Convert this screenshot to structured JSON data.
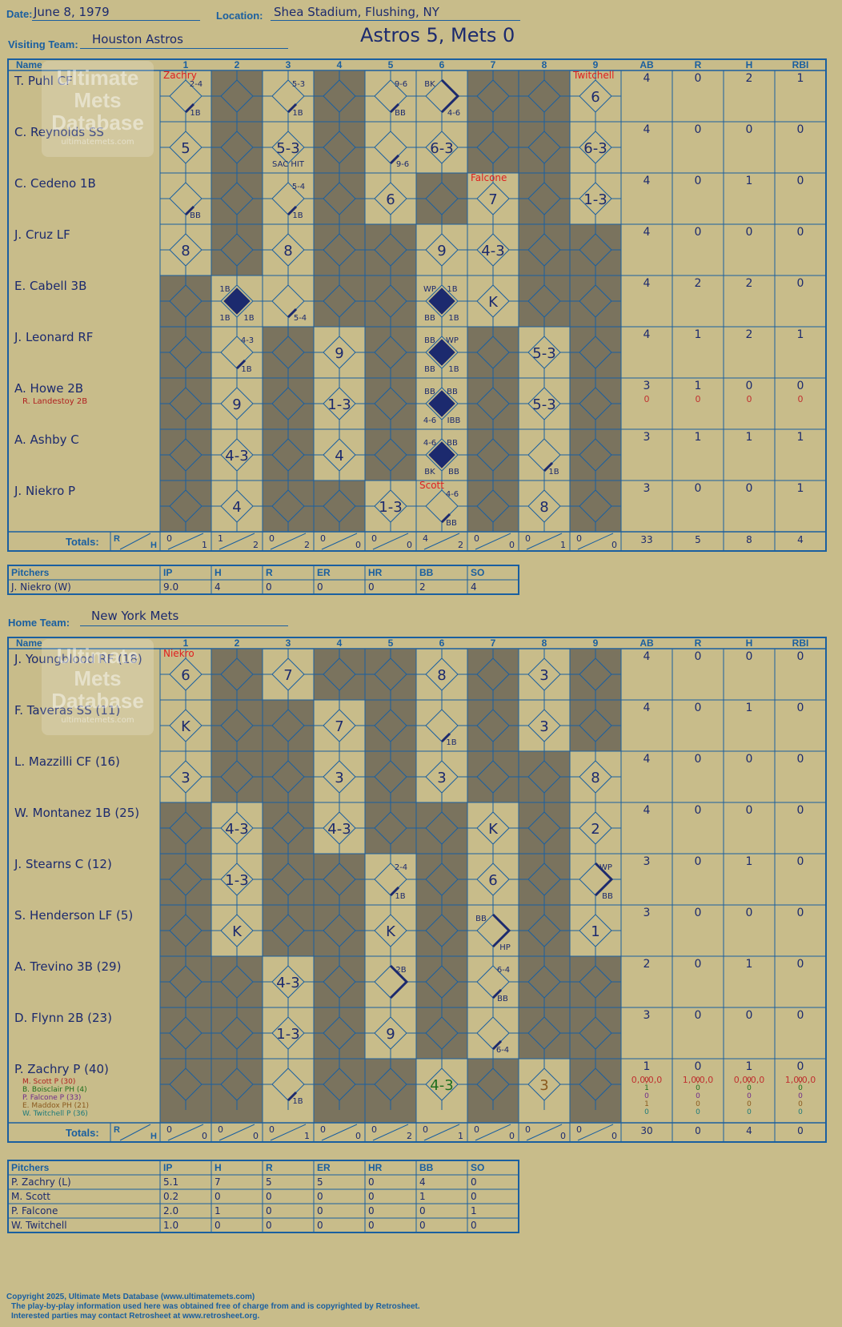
{
  "header": {
    "date_label": "Date:",
    "date": "June 8, 1979",
    "location_label": "Location:",
    "location": "Shea Stadium, Flushing, NY",
    "visiting_label": "Visiting Team:",
    "visiting_team": "Houston Astros",
    "result": "Astros 5, Mets 0",
    "home_label": "Home Team:",
    "home_team": "New York Mets"
  },
  "colors": {
    "card": "#c8bc8a",
    "shade": "#7a735e",
    "line": "#1a5fa0",
    "ink": "#1c2a6e",
    "red": "#e02020"
  },
  "columns": {
    "name": "Name",
    "innings": [
      "1",
      "2",
      "3",
      "4",
      "5",
      "6",
      "7",
      "8",
      "9"
    ],
    "stats": [
      "AB",
      "R",
      "H",
      "RBI"
    ],
    "totals": "Totals:",
    "r": "R",
    "h": "H"
  },
  "watermark": {
    "line1": "Ultimate",
    "line2": "Mets",
    "line3": "Database",
    "url": "ultimatemets.com"
  },
  "visitors": {
    "batters": [
      {
        "name": "T. Puhl CF",
        "stats": [
          "4",
          "0",
          "2",
          "1"
        ],
        "shade": [
          0,
          1,
          0,
          1,
          0,
          0,
          1,
          1,
          0
        ],
        "cells": [
          {
            "in": 1,
            "hit": 1,
            "code": "1B",
            "tr": "2-4"
          },
          {
            "in": 3,
            "hit": 1,
            "code": "1B",
            "tr": "5-3"
          },
          {
            "in": 5,
            "hit": 1,
            "code": "BB",
            "tr": "9-6"
          },
          {
            "in": 6,
            "hit": 2,
            "tl": "BK",
            "br": "4-6"
          },
          {
            "in": 9,
            "center": "6"
          }
        ]
      },
      {
        "name": "C. Reynolds SS",
        "stats": [
          "4",
          "0",
          "0",
          "0"
        ],
        "shade": [
          0,
          1,
          0,
          1,
          0,
          0,
          1,
          1,
          0
        ],
        "cells": [
          {
            "in": 1,
            "center": "5"
          },
          {
            "in": 3,
            "center": "5-3",
            "sub": "SAC HIT"
          },
          {
            "in": 5,
            "hit": 1,
            "br": "9-6"
          },
          {
            "in": 6,
            "center": "6-3"
          },
          {
            "in": 9,
            "center": "6-3"
          }
        ]
      },
      {
        "name": "C. Cedeno 1B",
        "stats": [
          "4",
          "0",
          "1",
          "0"
        ],
        "shade": [
          0,
          1,
          0,
          1,
          0,
          1,
          0,
          1,
          0
        ],
        "cells": [
          {
            "in": 1,
            "hit": 1,
            "code": "BB"
          },
          {
            "in": 3,
            "hit": 1,
            "code": "1B",
            "tr": "5-4"
          },
          {
            "in": 5,
            "center": "6"
          },
          {
            "in": 7,
            "center": "7"
          },
          {
            "in": 9,
            "center": "1-3"
          }
        ]
      },
      {
        "name": "J. Cruz LF",
        "stats": [
          "4",
          "0",
          "0",
          "0"
        ],
        "shade": [
          0,
          1,
          0,
          1,
          1,
          0,
          0,
          1,
          1
        ],
        "cells": [
          {
            "in": 1,
            "center": "8"
          },
          {
            "in": 3,
            "center": "8"
          },
          {
            "in": 6,
            "center": "9"
          },
          {
            "in": 7,
            "center": "4-3"
          }
        ]
      },
      {
        "name": "E. Cabell 3B",
        "stats": [
          "4",
          "2",
          "2",
          "0"
        ],
        "shade": [
          1,
          0,
          0,
          1,
          1,
          0,
          0,
          1,
          1
        ],
        "cells": [
          {
            "in": 2,
            "run": 1,
            "tl": "1B",
            "bl": "1B",
            "br": "1B"
          },
          {
            "in": 3,
            "hit": 1,
            "br": "5-4"
          },
          {
            "in": 6,
            "run": 1,
            "tl": "WP",
            "tr": "1B",
            "bl": "BB",
            "br": "1B"
          },
          {
            "in": 7,
            "center": "K"
          }
        ]
      },
      {
        "name": "J. Leonard RF",
        "stats": [
          "4",
          "1",
          "2",
          "1"
        ],
        "shade": [
          1,
          0,
          1,
          0,
          1,
          0,
          1,
          0,
          1
        ],
        "cells": [
          {
            "in": 2,
            "hit": 1,
            "code": "1B",
            "tr": "4-3"
          },
          {
            "in": 4,
            "center": "9"
          },
          {
            "in": 6,
            "run": 1,
            "tl": "BB",
            "tr": "WP",
            "bl": "BB",
            "br": "1B"
          },
          {
            "in": 8,
            "center": "5-3"
          }
        ]
      },
      {
        "name": "A. Howe 2B",
        "sub": "R. Landestoy 2B",
        "stats": [
          "3",
          "1",
          "0",
          "0"
        ],
        "sub_stats": [
          "0",
          "0",
          "0",
          "0"
        ],
        "shade": [
          1,
          0,
          1,
          0,
          1,
          0,
          1,
          0,
          1
        ],
        "cells": [
          {
            "in": 2,
            "center": "9"
          },
          {
            "in": 4,
            "center": "1-3"
          },
          {
            "in": 6,
            "run": 1,
            "tl": "BB",
            "tr": "BB",
            "bl": "4-6",
            "br": "IBB"
          },
          {
            "in": 8,
            "center": "5-3"
          }
        ]
      },
      {
        "name": "A. Ashby C",
        "stats": [
          "3",
          "1",
          "1",
          "1"
        ],
        "shade": [
          1,
          0,
          1,
          0,
          1,
          0,
          1,
          0,
          1
        ],
        "cells": [
          {
            "in": 2,
            "center": "4-3"
          },
          {
            "in": 4,
            "center": "4"
          },
          {
            "in": 6,
            "run": 1,
            "tl": "4-6",
            "tr": "BB",
            "bl": "BK",
            "br": "BB"
          },
          {
            "in": 8,
            "hit": 1,
            "code": "1B"
          }
        ]
      },
      {
        "name": "J. Niekro P",
        "stats": [
          "3",
          "0",
          "0",
          "1"
        ],
        "shade": [
          1,
          0,
          1,
          1,
          0,
          0,
          1,
          0,
          1
        ],
        "cells": [
          {
            "in": 2,
            "center": "4"
          },
          {
            "in": 5,
            "center": "1-3"
          },
          {
            "in": 6,
            "hit": 1,
            "code": "BB",
            "tr": "4-6"
          },
          {
            "in": 8,
            "center": "8"
          }
        ]
      }
    ],
    "pitch_changes": [
      {
        "in": 1,
        "row": 0,
        "text": "Zachry"
      },
      {
        "in": 9,
        "row": 0,
        "text": "Twitchell"
      },
      {
        "in": 7,
        "row": 2,
        "text": "Falcone"
      },
      {
        "in": 6,
        "row": 8,
        "text": "Scott"
      }
    ],
    "totals": {
      "rh": [
        [
          "0",
          "1"
        ],
        [
          "1",
          "2"
        ],
        [
          "0",
          "2"
        ],
        [
          "0",
          "0"
        ],
        [
          "0",
          "0"
        ],
        [
          "4",
          "2"
        ],
        [
          "0",
          "0"
        ],
        [
          "0",
          "1"
        ],
        [
          "0",
          "0"
        ]
      ],
      "stats": [
        "33",
        "5",
        "8",
        "4"
      ]
    },
    "pitchers": {
      "header": [
        "Pitchers",
        "IP",
        "H",
        "R",
        "ER",
        "HR",
        "BB",
        "SO"
      ],
      "rows": [
        [
          "J. Niekro (W)",
          "9.0",
          "4",
          "0",
          "0",
          "0",
          "2",
          "4"
        ]
      ]
    }
  },
  "home": {
    "batters": [
      {
        "name": "J. Youngblood RF (18)",
        "stats": [
          "4",
          "0",
          "0",
          "0"
        ],
        "shade": [
          0,
          1,
          0,
          1,
          1,
          0,
          1,
          0,
          1
        ],
        "cells": [
          {
            "in": 1,
            "center": "6"
          },
          {
            "in": 3,
            "center": "7"
          },
          {
            "in": 6,
            "center": "8"
          },
          {
            "in": 8,
            "center": "3"
          }
        ]
      },
      {
        "name": "F. Taveras SS (11)",
        "stats": [
          "4",
          "0",
          "1",
          "0"
        ],
        "shade": [
          0,
          1,
          1,
          0,
          1,
          0,
          1,
          0,
          1
        ],
        "cells": [
          {
            "in": 1,
            "center": "K"
          },
          {
            "in": 4,
            "center": "7"
          },
          {
            "in": 6,
            "hit": 1,
            "code": "1B"
          },
          {
            "in": 8,
            "center": "3"
          }
        ]
      },
      {
        "name": "L. Mazzilli CF (16)",
        "stats": [
          "4",
          "0",
          "0",
          "0"
        ],
        "shade": [
          0,
          1,
          1,
          0,
          1,
          0,
          1,
          1,
          0
        ],
        "cells": [
          {
            "in": 1,
            "center": "3"
          },
          {
            "in": 4,
            "center": "3"
          },
          {
            "in": 6,
            "center": "3"
          },
          {
            "in": 9,
            "center": "8"
          }
        ]
      },
      {
        "name": "W. Montanez 1B (25)",
        "stats": [
          "4",
          "0",
          "0",
          "0"
        ],
        "shade": [
          1,
          0,
          1,
          0,
          1,
          1,
          0,
          1,
          0
        ],
        "cells": [
          {
            "in": 2,
            "center": "4-3"
          },
          {
            "in": 4,
            "center": "4-3"
          },
          {
            "in": 7,
            "center": "K"
          },
          {
            "in": 9,
            "center": "2"
          }
        ]
      },
      {
        "name": "J. Stearns C (12)",
        "stats": [
          "3",
          "0",
          "1",
          "0"
        ],
        "shade": [
          1,
          0,
          1,
          1,
          0,
          1,
          0,
          1,
          0
        ],
        "cells": [
          {
            "in": 2,
            "center": "1-3"
          },
          {
            "in": 5,
            "hit": 1,
            "code": "1B",
            "tr": "2-4"
          },
          {
            "in": 7,
            "center": "6"
          },
          {
            "in": 9,
            "hit": 2,
            "tr": "WP",
            "br": "BB"
          }
        ]
      },
      {
        "name": "S. Henderson LF (5)",
        "stats": [
          "3",
          "0",
          "0",
          "0"
        ],
        "shade": [
          1,
          0,
          1,
          1,
          0,
          1,
          0,
          1,
          0
        ],
        "cells": [
          {
            "in": 2,
            "center": "K"
          },
          {
            "in": 5,
            "center": "K"
          },
          {
            "in": 7,
            "hit": 2,
            "tl": "BB",
            "br": "HP"
          },
          {
            "in": 9,
            "center": "1"
          }
        ]
      },
      {
        "name": "A. Trevino 3B (29)",
        "stats": [
          "2",
          "0",
          "1",
          "0"
        ],
        "shade": [
          1,
          1,
          0,
          1,
          0,
          1,
          0,
          1,
          1
        ],
        "cells": [
          {
            "in": 3,
            "center": "4-3"
          },
          {
            "in": 5,
            "hit": 2,
            "tr": "2B"
          },
          {
            "in": 7,
            "hit": 1,
            "code": "BB",
            "tr": "6-4"
          }
        ]
      },
      {
        "name": "D. Flynn 2B (23)",
        "stats": [
          "3",
          "0",
          "0",
          "0"
        ],
        "shade": [
          1,
          1,
          0,
          1,
          0,
          1,
          0,
          1,
          1
        ],
        "cells": [
          {
            "in": 3,
            "center": "1-3"
          },
          {
            "in": 5,
            "center": "9"
          },
          {
            "in": 7,
            "hit": 1,
            "code": "6-4"
          }
        ]
      },
      {
        "name": "P. Zachry P (40)",
        "stats": [
          "1",
          "0",
          "1",
          "0"
        ],
        "shade": [
          1,
          1,
          0,
          1,
          1,
          0,
          1,
          0,
          1
        ],
        "subs": [
          "M. Scott P (30)",
          "B. Boisclair PH (4)",
          "P. Falcone P (33)",
          "E. Maddox PH (21)",
          "W. Twitchell P (36)"
        ],
        "sub_stats": [
          [
            "0",
            "0",
            "0",
            "0"
          ],
          [
            "1",
            "0",
            "0",
            "0"
          ],
          [
            "0",
            "0",
            "0",
            "0"
          ],
          [
            "1",
            "0",
            "0",
            "0"
          ],
          [
            "0",
            "0",
            "0",
            "0"
          ]
        ],
        "cells": [
          {
            "in": 3,
            "hit": 1,
            "code": "1B"
          },
          {
            "in": 6,
            "center": "4-3",
            "color": "green"
          },
          {
            "in": 8,
            "center": "3",
            "color": "brown"
          }
        ]
      }
    ],
    "pitch_changes": [
      {
        "in": 1,
        "row": 0,
        "text": "Niekro"
      }
    ],
    "totals": {
      "rh": [
        [
          "0",
          "0"
        ],
        [
          "0",
          "0"
        ],
        [
          "0",
          "1"
        ],
        [
          "0",
          "0"
        ],
        [
          "0",
          "2"
        ],
        [
          "0",
          "1"
        ],
        [
          "0",
          "0"
        ],
        [
          "0",
          "0"
        ],
        [
          "0",
          "0"
        ]
      ],
      "stats": [
        "30",
        "0",
        "4",
        "0"
      ]
    },
    "pitchers": {
      "header": [
        "Pitchers",
        "IP",
        "H",
        "R",
        "ER",
        "HR",
        "BB",
        "SO"
      ],
      "rows": [
        [
          "P. Zachry (L)",
          "5.1",
          "7",
          "5",
          "5",
          "0",
          "4",
          "0"
        ],
        [
          "M. Scott",
          "0.2",
          "0",
          "0",
          "0",
          "0",
          "1",
          "0"
        ],
        [
          "P. Falcone",
          "2.0",
          "1",
          "0",
          "0",
          "0",
          "0",
          "1"
        ],
        [
          "W. Twitchell",
          "1.0",
          "0",
          "0",
          "0",
          "0",
          "0",
          "0"
        ]
      ]
    }
  },
  "footer": {
    "line1": "Copyright 2025, Ultimate Mets Database (www.ultimatemets.com)",
    "line2": "The play-by-play information used here was obtained free of charge from and is copyrighted by Retrosheet.",
    "line3": "Interested parties may contact Retrosheet at www.retrosheet.org."
  }
}
